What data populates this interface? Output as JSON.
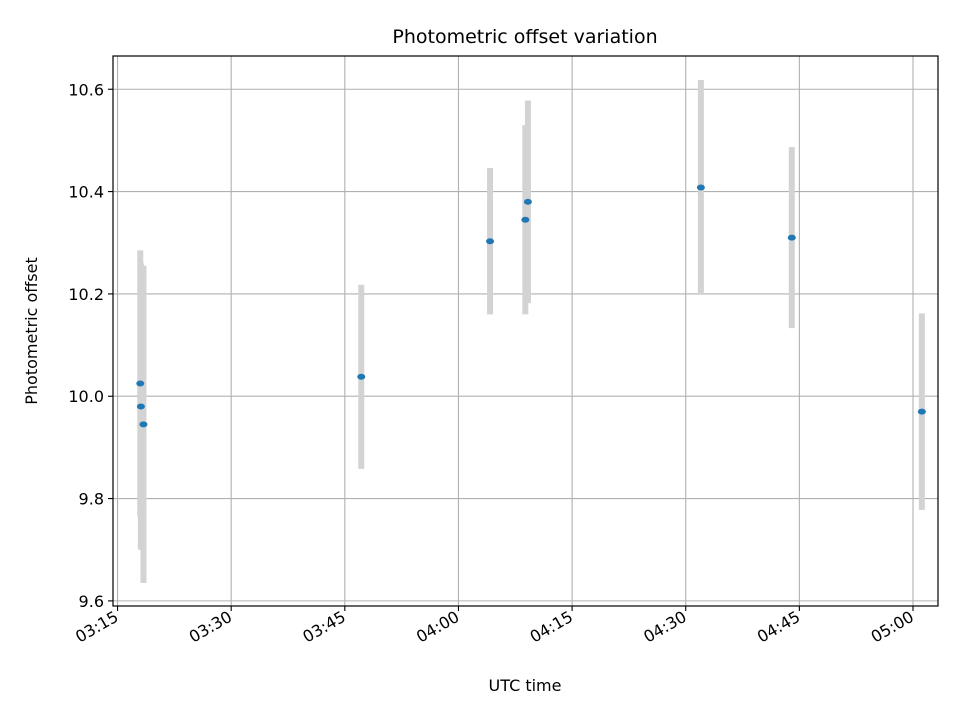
{
  "chart_data": {
    "type": "scatter",
    "title": "Photometric offset variation",
    "xlabel": "UTC time",
    "ylabel": "Photometric offset",
    "x_unit": "minutes since 00:00 UTC",
    "xlim": [
      194.4,
      303.3
    ],
    "ylim": [
      9.59,
      10.665
    ],
    "grid": true,
    "legend": "none",
    "x_ticks": [
      {
        "value": 195,
        "label": "03:15"
      },
      {
        "value": 210,
        "label": "03:30"
      },
      {
        "value": 225,
        "label": "03:45"
      },
      {
        "value": 240,
        "label": "04:00"
      },
      {
        "value": 255,
        "label": "04:15"
      },
      {
        "value": 270,
        "label": "04:30"
      },
      {
        "value": 285,
        "label": "04:45"
      },
      {
        "value": 300,
        "label": "05:00"
      }
    ],
    "y_ticks": [
      {
        "value": 9.6,
        "label": "9.6"
      },
      {
        "value": 9.8,
        "label": "9.8"
      },
      {
        "value": 10.0,
        "label": "10.0"
      },
      {
        "value": 10.2,
        "label": "10.2"
      },
      {
        "value": 10.4,
        "label": "10.4"
      },
      {
        "value": 10.6,
        "label": "10.6"
      }
    ],
    "series": [
      {
        "name": "offset",
        "marker_color": "#1f77b4",
        "errorbar_color": "#d3d3d3",
        "points": [
          {
            "time": "03:18:00",
            "x": 198.0,
            "y": 10.025,
            "err": 0.26
          },
          {
            "time": "03:18:05",
            "x": 198.08,
            "y": 9.98,
            "err": 0.28
          },
          {
            "time": "03:18:25",
            "x": 198.42,
            "y": 9.945,
            "err": 0.31
          },
          {
            "time": "03:47:10",
            "x": 227.17,
            "y": 10.038,
            "err": 0.18
          },
          {
            "time": "04:04:10",
            "x": 244.17,
            "y": 10.303,
            "err": 0.143
          },
          {
            "time": "04:08:50",
            "x": 248.83,
            "y": 10.345,
            "err": 0.185
          },
          {
            "time": "04:09:10",
            "x": 249.17,
            "y": 10.38,
            "err": 0.198
          },
          {
            "time": "04:32:00",
            "x": 272.0,
            "y": 10.408,
            "err": 0.21
          },
          {
            "time": "04:44:00",
            "x": 284.0,
            "y": 10.31,
            "err": 0.177
          },
          {
            "time": "05:01:10",
            "x": 301.17,
            "y": 9.97,
            "err": 0.192
          }
        ]
      }
    ]
  }
}
